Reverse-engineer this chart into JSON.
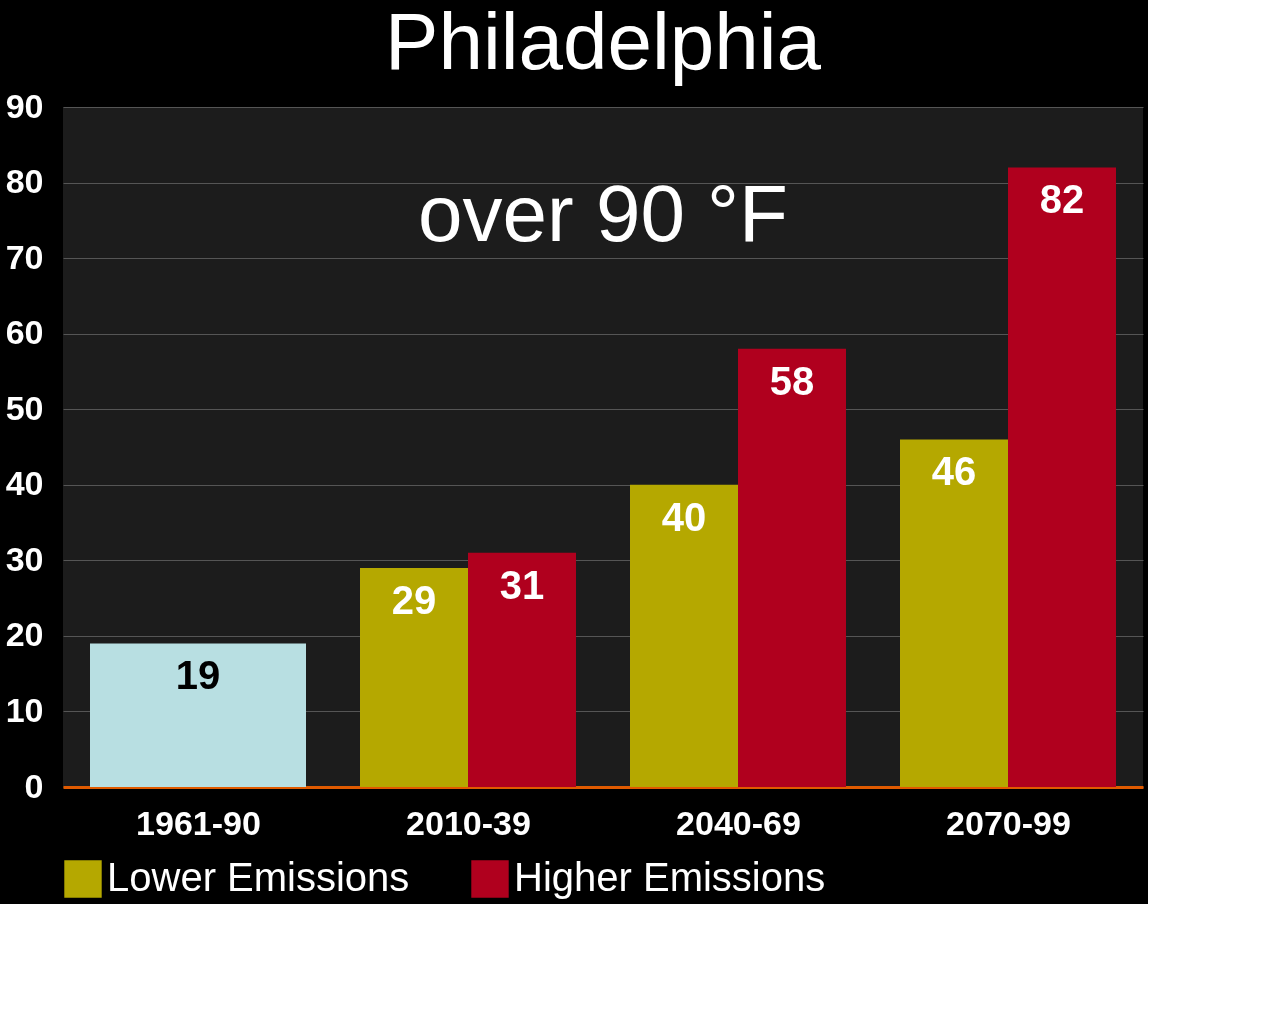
{
  "chart_data": {
    "type": "bar",
    "title": "Philadelphia",
    "annotations": [
      "over 90 °F"
    ],
    "categories": [
      "1961-90",
      "2010-39",
      "2040-69",
      "2070-99"
    ],
    "series": [
      {
        "color": "#b8dfe2",
        "values": [
          19,
          null,
          null,
          null
        ]
      },
      {
        "name": "Lower Emissions",
        "color": "#b5a800",
        "values": [
          null,
          29,
          40,
          46
        ]
      },
      {
        "name": "Higher Emissions",
        "color": "#b0001e",
        "values": [
          null,
          31,
          58,
          82
        ]
      }
    ],
    "ylim": [
      0,
      90
    ],
    "yticks": [
      0,
      10,
      20,
      30,
      40,
      50,
      60,
      70,
      80,
      90
    ],
    "grid": "y",
    "legend": "bottom",
    "data_labels": true
  }
}
